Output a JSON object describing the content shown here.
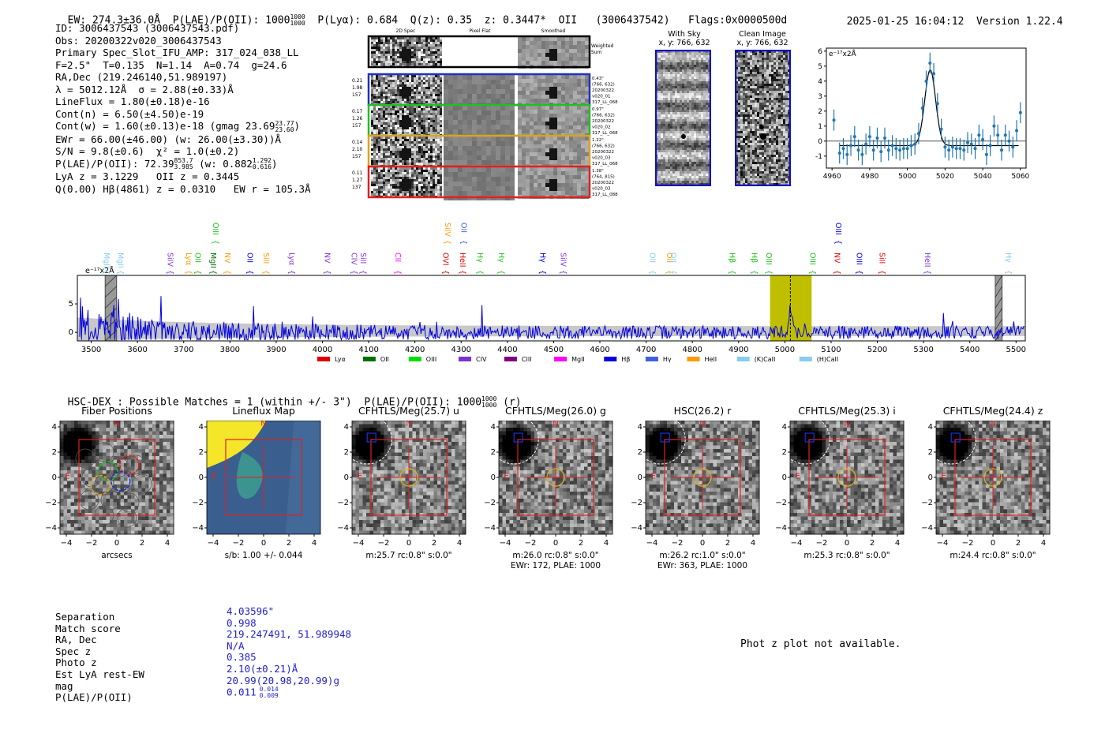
{
  "header": {
    "ew": "EW: 274.3±36.0Å",
    "plae_label": "P(LAE)/P(OII): 1000",
    "plae_hi": "1000",
    "plae_lo": "1000",
    "plya": "P(Lyα): 0.684",
    "qz": "Q(z): 0.35",
    "z": "z: 0.3447*",
    "line": "OII",
    "detid": "(3006437542)",
    "flags": "Flags:0x0000500d",
    "timestamp": "2025-01-25 16:04:12",
    "version": "Version 1.22.4"
  },
  "info": {
    "id": "ID: 3006437543 (3006437543.pdf)",
    "obs": "Obs: 20200322v020_3006437543",
    "primary": "Primary Spec_Slot_IFU_AMP: 317_024_038_LL",
    "params": "F=2.5\"  T=0.135  N=1.14  A=0.74  g=24.6",
    "radec": "RA,Dec (219.246140,51.989197)",
    "lambda": "λ = 5012.12Å  σ = 2.88(±0.33)Å",
    "lineflux": "LineFlux = 1.80(±0.18)e-16",
    "contn": "Cont(n) = 6.50(±4.50)e-19",
    "contw": "Cont(w) = 1.60(±0.13)e-18 (gmag 23.69",
    "contw_hi": "23.77",
    "contw_lo": "23.60",
    "contw_end": ")",
    "ewr": "EWr = 66.00(±46.00) (w: 26.00(±3.30))Å",
    "sn": "S/N = 9.8(±0.6)  χ² = 1.0(±0.2)",
    "plae": "P(LAE)/P(OII): 72.39",
    "plae_hi": "853.7",
    "plae_lo": "3.985",
    "plae_w": "(w: 0.882",
    "plae_w_hi": "1.292",
    "plae_w_lo": "0.616",
    "plae_w_end": ")",
    "lya": "LyA z = 3.1229   OII z = 0.3445",
    "q": "Q(0.00) Hβ(4861) z = 0.0310   EW r = 105.3Å"
  },
  "cutouts": {
    "col_titles": [
      "2D Spec",
      "Pixel Flat",
      "Smoothed"
    ],
    "weighted": [
      "Weighted",
      "Sum"
    ],
    "rows": [
      {
        "left": [
          "0.21",
          "1.98",
          "157"
        ],
        "right": [
          "0.43\"",
          "(766, 632)",
          "20200322",
          "v020_01",
          "317_LL_068"
        ],
        "color": "#2030c0"
      },
      {
        "left": [
          "0.17",
          "1.26",
          "157"
        ],
        "right": [
          "0.97\"",
          "(766, 632)",
          "20200322",
          "v020_02",
          "317_LL_068"
        ],
        "color": "#20c020"
      },
      {
        "left": [
          "0.14",
          "2.10",
          "157"
        ],
        "right": [
          "1.22\"",
          "(766, 632)",
          "20200322",
          "v020_03",
          "317_LL_068"
        ],
        "color": "#e0a020"
      },
      {
        "left": [
          "0.11",
          "1.27",
          "137"
        ],
        "right": [
          "1.38\"",
          "(764, 815)",
          "20200322",
          "v020_03",
          "317_LL_088"
        ],
        "color": "#e02020"
      }
    ],
    "with_sky": [
      "With Sky",
      "x, y: 766, 632"
    ],
    "clean": [
      "Clean Image",
      "x, y: 766, 632"
    ]
  },
  "legend": [
    {
      "name": "Lyα",
      "color": "#e00000"
    },
    {
      "name": "OII",
      "color": "#007000"
    },
    {
      "name": "OIII",
      "color": "#00e000"
    },
    {
      "name": "CIV",
      "color": "#8030d0"
    },
    {
      "name": "CIII",
      "color": "#800080"
    },
    {
      "name": "MgII",
      "color": "#ff00ff"
    },
    {
      "name": "Hβ",
      "color": "#0000e0"
    },
    {
      "name": "Hγ",
      "color": "#4060e0"
    },
    {
      "name": "HeII",
      "color": "#ff9900"
    },
    {
      "name": "(K)CaII",
      "color": "#88ccee"
    },
    {
      "name": "(H)CaII",
      "color": "#88ccee"
    }
  ],
  "line_labels": [
    {
      "name": "MgII",
      "wave": 3535,
      "color": "#88ccee",
      "row": 1
    },
    {
      "name": "MgII",
      "wave": 3565,
      "color": "#88ccee",
      "row": 1
    },
    {
      "name": "SiIV",
      "wave": 3672,
      "color": "#8030d0",
      "row": 0
    },
    {
      "name": "Lyα",
      "wave": 3712,
      "color": "#ff9900",
      "row": 0
    },
    {
      "name": "OII",
      "wave": 3732,
      "color": "#20c020",
      "row": 0
    },
    {
      "name": "MgII",
      "wave": 3765,
      "color": "#007000",
      "row": 0
    },
    {
      "name": "OIII",
      "wave": 3770,
      "color": "#20c020",
      "row": 2
    },
    {
      "name": "NV",
      "wave": 3796,
      "color": "#ff9900",
      "row": 0
    },
    {
      "name": "OII",
      "wave": 3845,
      "color": "#0000e0",
      "row": 0
    },
    {
      "name": "SiII",
      "wave": 3880,
      "color": "#ff9900",
      "row": 0
    },
    {
      "name": "Lyα",
      "wave": 3935,
      "color": "#8030d0",
      "row": 0
    },
    {
      "name": "NV",
      "wave": 4012,
      "color": "#8030d0",
      "row": 0
    },
    {
      "name": "CIV",
      "wave": 4070,
      "color": "#8030d0",
      "row": 0
    },
    {
      "name": "SiII",
      "wave": 4090,
      "color": "#8030d0",
      "row": 0
    },
    {
      "name": "CII",
      "wave": 4165,
      "color": "#ff00ff",
      "row": 0
    },
    {
      "name": "OVI",
      "wave": 4268,
      "color": "#e00000",
      "row": 0
    },
    {
      "name": "SiIV",
      "wave": 4272,
      "color": "#ff9900",
      "row": 2
    },
    {
      "name": "HeII",
      "wave": 4305,
      "color": "#e00000",
      "row": 0
    },
    {
      "name": "OII",
      "wave": 4307,
      "color": "#4060e0",
      "row": 2
    },
    {
      "name": "Hγ",
      "wave": 4342,
      "color": "#20c020",
      "row": 0
    },
    {
      "name": "Hγ",
      "wave": 4388,
      "color": "#20c020",
      "row": 0
    },
    {
      "name": "Hγ",
      "wave": 4478,
      "color": "#0000e0",
      "row": 0
    },
    {
      "name": "SiIV",
      "wave": 4522,
      "color": "#8030d0",
      "row": 0
    },
    {
      "name": "OII",
      "wave": 4715,
      "color": "#88ccee",
      "row": 0
    },
    {
      "name": "OII",
      "wave": 4752,
      "color": "#ff9900",
      "row": 0
    },
    {
      "name": "OII",
      "wave": 4760,
      "color": "#88ccee",
      "row": 0
    },
    {
      "name": "Hβ",
      "wave": 4888,
      "color": "#20c020",
      "row": 0
    },
    {
      "name": "Hβ",
      "wave": 4935,
      "color": "#20c020",
      "row": 0
    },
    {
      "name": "OIII",
      "wave": 4967,
      "color": "#20c020",
      "row": 0
    },
    {
      "name": "OIII",
      "wave": 5062,
      "color": "#20c020",
      "row": 0
    },
    {
      "name": "NV",
      "wave": 5115,
      "color": "#e00000",
      "row": 0
    },
    {
      "name": "OIII",
      "wave": 5117,
      "color": "#0000e0",
      "row": 2
    },
    {
      "name": "OIII",
      "wave": 5162,
      "color": "#0000e0",
      "row": 0
    },
    {
      "name": "SiII",
      "wave": 5212,
      "color": "#e00000",
      "row": 0
    },
    {
      "name": "HeII",
      "wave": 5310,
      "color": "#8030d0",
      "row": 0
    },
    {
      "name": "Hγ",
      "wave": 5485,
      "color": "#88ccee",
      "row": 0
    }
  ],
  "chart_data": [
    {
      "type": "line",
      "title": "Full spectrum",
      "ylabel": "e⁻¹⁷x2Å",
      "xlim": [
        3470,
        5520
      ],
      "ylim": [
        -1.5,
        10
      ],
      "xticks": [
        3500,
        3600,
        3700,
        3800,
        3900,
        4000,
        4100,
        4200,
        4300,
        4400,
        4500,
        4600,
        4700,
        4800,
        4900,
        5000,
        5100,
        5200,
        5300,
        5400,
        5500
      ],
      "yticks": [
        0,
        5
      ],
      "highlight_range": [
        4968,
        5058
      ],
      "marker_wave": 5012,
      "hatch_ranges": [
        [
          3530,
          3555
        ],
        [
          5455,
          5470
        ]
      ],
      "emission_peak": {
        "wave": 5012,
        "height": 4.3,
        "sigma": 3.5
      },
      "noise_seed": 7
    },
    {
      "type": "scatter",
      "title": "Line fit",
      "ylabel": "e⁻¹⁷x2Å",
      "xlim": [
        4957,
        5063
      ],
      "ylim": [
        -1.8,
        6.2
      ],
      "xticks": [
        4960,
        4980,
        5000,
        5020,
        5040,
        5060
      ],
      "yticks": [
        -1,
        0,
        1,
        2,
        3,
        4,
        5,
        6
      ],
      "fit": {
        "center": 5012.12,
        "amp": 5.05,
        "sigma": 2.88,
        "cont": -0.3
      },
      "points": [
        [
          4961,
          1.4,
          0.7
        ],
        [
          4964,
          -0.8,
          0.7
        ],
        [
          4966,
          -0.5,
          0.7
        ],
        [
          4968,
          -0.9,
          0.7
        ],
        [
          4970,
          -0.3,
          0.7
        ],
        [
          4972,
          0.3,
          0.7
        ],
        [
          4974,
          -0.6,
          0.7
        ],
        [
          4976,
          -0.9,
          0.7
        ],
        [
          4978,
          -0.2,
          0.7
        ],
        [
          4980,
          0.3,
          0.7
        ],
        [
          4982,
          -0.6,
          0.7
        ],
        [
          4984,
          0.2,
          0.7
        ],
        [
          4986,
          -0.7,
          0.7
        ],
        [
          4988,
          0.2,
          0.7
        ],
        [
          4990,
          -0.6,
          0.7
        ],
        [
          4992,
          -0.3,
          0.7
        ],
        [
          4994,
          -0.5,
          0.7
        ],
        [
          4996,
          -0.6,
          0.7
        ],
        [
          4998,
          -0.5,
          0.7
        ],
        [
          5000,
          -0.5,
          0.7
        ],
        [
          5002,
          -0.3,
          0.7
        ],
        [
          5004,
          -0.2,
          0.7
        ],
        [
          5006,
          0.5,
          0.7
        ],
        [
          5008,
          2.2,
          0.7
        ],
        [
          5010,
          4.0,
          0.7
        ],
        [
          5012,
          5.2,
          0.7
        ],
        [
          5014,
          4.5,
          0.7
        ],
        [
          5016,
          2.5,
          0.7
        ],
        [
          5018,
          0.8,
          0.7
        ],
        [
          5020,
          -0.4,
          0.7
        ],
        [
          5022,
          -0.6,
          0.7
        ],
        [
          5024,
          -0.4,
          0.7
        ],
        [
          5026,
          -0.5,
          0.7
        ],
        [
          5028,
          -0.5,
          0.7
        ],
        [
          5030,
          -0.6,
          0.7
        ],
        [
          5032,
          -0.1,
          0.7
        ],
        [
          5034,
          -0.2,
          0.7
        ],
        [
          5036,
          -0.5,
          0.7
        ],
        [
          5038,
          0.4,
          0.7
        ],
        [
          5040,
          0.1,
          0.7
        ],
        [
          5042,
          -0.9,
          0.7
        ],
        [
          5044,
          -0.3,
          0.7
        ],
        [
          5046,
          1.0,
          0.7
        ],
        [
          5048,
          0.4,
          0.7
        ],
        [
          5050,
          -0.6,
          0.7
        ],
        [
          5052,
          0.4,
          0.7
        ],
        [
          5054,
          0.0,
          0.7
        ],
        [
          5056,
          -0.4,
          0.7
        ],
        [
          5058,
          0.7,
          0.7
        ],
        [
          5060,
          1.9,
          0.7
        ]
      ]
    }
  ],
  "hsc": {
    "title": "HSC-DEX : Possible Matches = 1 (within +/- 3\")  P(LAE)/P(OII): 1000",
    "title_hi": "1000",
    "title_lo": "1000",
    "title_end": "(r)"
  },
  "panels": [
    {
      "title": "Fiber Positions",
      "sub": [
        "arcsecs"
      ],
      "kind": "fiber"
    },
    {
      "title": "Lineflux Map",
      "sub": [
        "s/b: 1.00 +/- 0.044"
      ],
      "kind": "lineflux"
    },
    {
      "title": "CFHTLS/Meg(25.7) u",
      "sub": [
        "m:25.7 rc:0.8\"  s:0.0\""
      ],
      "kind": "img"
    },
    {
      "title": "CFHTLS/Meg(26.0) g",
      "sub": [
        "m:26.0 rc:0.8\"  s:0.0\"",
        "EWr: 172, PLAE: 1000"
      ],
      "kind": "img"
    },
    {
      "title": "HSC(26.2) r",
      "sub": [
        "m:26.2 rc:1.0\"  s:0.0\"",
        "EWr: 363, PLAE: 1000"
      ],
      "kind": "img"
    },
    {
      "title": "CFHTLS/Meg(25.3) i",
      "sub": [
        "m:25.3 rc:0.8\"  s:0.0\""
      ],
      "kind": "img"
    },
    {
      "title": "CFHTLS/Meg(24.4) z",
      "sub": [
        "m:24.4 rc:0.8\"  s:0.0\""
      ],
      "kind": "img"
    }
  ],
  "panel_axis": {
    "ticks": [
      -4,
      -2,
      0,
      2,
      4
    ],
    "n_label": "N",
    "e_label": "E"
  },
  "match": {
    "labels": [
      "Separation",
      "Match score",
      "RA, Dec",
      "Spec z",
      "Photo z",
      "Est LyA rest-EW",
      "mag",
      "P(LAE)/P(OII)"
    ],
    "values": [
      "4.03596\"",
      "0.998",
      "219.247491, 51.989948",
      "N/A",
      "0.385",
      "2.10(±0.21)Å",
      "20.99(20.98,20.99)g",
      "0.011"
    ],
    "plae_hi": "0.014",
    "plae_lo": "0.009"
  },
  "phot_z": "Phot z plot not available."
}
